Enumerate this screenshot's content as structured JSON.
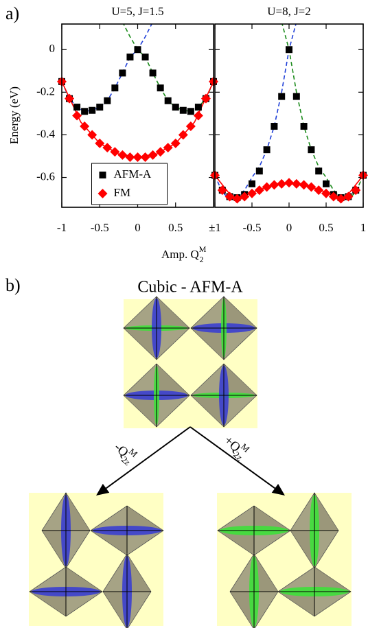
{
  "chart_data": [
    {
      "type": "scatter",
      "title": "U=5, J=1.5",
      "ylabel": "Energy (eV)",
      "xlabel": {
        "text": "Amp. Q",
        "sup": "M",
        "sub": "2"
      },
      "xlim": [
        -1,
        1
      ],
      "ylim": [
        -0.74,
        0.12
      ],
      "xticks": [
        -1,
        -0.5,
        0,
        0.5
      ],
      "yticks": [
        0,
        -0.2,
        -0.4,
        -0.6
      ],
      "ytick_labels": true,
      "legend": "lower center",
      "x": [
        -1,
        -0.9,
        -0.8,
        -0.7,
        -0.6,
        -0.5,
        -0.4,
        -0.3,
        -0.2,
        -0.1,
        0,
        0.1,
        0.2,
        0.3,
        0.4,
        0.5,
        0.6,
        0.7,
        0.8,
        0.9,
        1
      ],
      "series": [
        {
          "name": "AFM-A",
          "color": "#000000",
          "marker": "square",
          "values": [
            -0.15,
            -0.23,
            -0.27,
            -0.29,
            -0.285,
            -0.27,
            -0.24,
            -0.18,
            -0.11,
            -0.035,
            0,
            -0.035,
            -0.11,
            -0.18,
            -0.24,
            -0.27,
            -0.285,
            -0.29,
            -0.27,
            -0.23,
            -0.15
          ]
        },
        {
          "name": "FM",
          "color": "#ff0000",
          "marker": "diamond",
          "values": [
            -0.15,
            -0.23,
            -0.31,
            -0.36,
            -0.4,
            -0.44,
            -0.46,
            -0.48,
            -0.495,
            -0.505,
            -0.505,
            -0.505,
            -0.495,
            -0.48,
            -0.46,
            -0.44,
            -0.4,
            -0.36,
            -0.31,
            -0.23,
            -0.15
          ]
        }
      ],
      "fits": [
        {
          "color": "#1f3fd8",
          "style": "dashed",
          "x": [
            -1,
            -0.9,
            -0.8,
            -0.7,
            -0.6,
            -0.5,
            -0.4,
            -0.3,
            -0.2,
            -0.1,
            0,
            0.1,
            0.2
          ],
          "values": [
            -0.15,
            -0.23,
            -0.27,
            -0.29,
            -0.285,
            -0.27,
            -0.24,
            -0.18,
            -0.11,
            -0.035,
            0,
            0.06,
            0.13
          ]
        },
        {
          "color": "#1a8a1a",
          "style": "dashed",
          "x": [
            -0.2,
            -0.1,
            0,
            0.1,
            0.2,
            0.3,
            0.4,
            0.5,
            0.6,
            0.7,
            0.8,
            0.9,
            1
          ],
          "values": [
            0.13,
            0.06,
            0,
            -0.035,
            -0.11,
            -0.18,
            -0.24,
            -0.27,
            -0.285,
            -0.29,
            -0.27,
            -0.23,
            -0.15
          ]
        },
        {
          "color": "#ff0000",
          "style": "solid",
          "x": [
            -1,
            -0.75,
            -0.5,
            -0.25,
            0,
            0.25,
            0.5,
            0.75,
            1
          ],
          "values": [
            -0.15,
            -0.34,
            -0.44,
            -0.49,
            -0.505,
            -0.49,
            -0.44,
            -0.34,
            -0.15
          ]
        }
      ]
    },
    {
      "type": "scatter",
      "title": "U=8, J=2",
      "xlim": [
        -1,
        1
      ],
      "ylim": [
        -0.74,
        0.12
      ],
      "xticks": [
        {
          "value": -1,
          "label": "±1"
        },
        -0.5,
        0,
        0.5,
        1
      ],
      "yticks": [
        0,
        -0.2,
        -0.4,
        -0.6
      ],
      "ytick_labels": false,
      "x": [
        -1,
        -0.9,
        -0.8,
        -0.7,
        -0.6,
        -0.5,
        -0.4,
        -0.3,
        -0.2,
        -0.1,
        0,
        0.1,
        0.2,
        0.3,
        0.4,
        0.5,
        0.6,
        0.7,
        0.8,
        0.9,
        1
      ],
      "series": [
        {
          "color": "#000000",
          "marker": "square",
          "values": [
            -0.59,
            -0.66,
            -0.69,
            -0.695,
            -0.68,
            -0.63,
            -0.57,
            -0.47,
            -0.36,
            -0.22,
            0,
            -0.22,
            -0.36,
            -0.47,
            -0.57,
            -0.63,
            -0.68,
            -0.695,
            -0.69,
            -0.66,
            -0.59
          ]
        },
        {
          "color": "#ff0000",
          "marker": "diamond",
          "values": [
            -0.59,
            -0.66,
            -0.69,
            -0.7,
            -0.69,
            -0.675,
            -0.66,
            -0.645,
            -0.635,
            -0.63,
            -0.625,
            -0.63,
            -0.635,
            -0.645,
            -0.66,
            -0.675,
            -0.69,
            -0.7,
            -0.69,
            -0.66,
            -0.59
          ]
        }
      ],
      "fits": [
        {
          "color": "#1f3fd8",
          "style": "dashed",
          "x": [
            -1,
            -0.9,
            -0.8,
            -0.7,
            -0.6,
            -0.5,
            -0.4,
            -0.3,
            -0.2,
            -0.1,
            0,
            0.1
          ],
          "values": [
            -0.59,
            -0.67,
            -0.7,
            -0.69,
            -0.66,
            -0.6,
            -0.55,
            -0.47,
            -0.36,
            -0.2,
            0,
            0.13
          ]
        },
        {
          "color": "#1a8a1a",
          "style": "dashed",
          "x": [
            -0.1,
            0,
            0.1,
            0.2,
            0.3,
            0.4,
            0.5,
            0.6,
            0.7,
            0.8,
            0.9,
            1
          ],
          "values": [
            0.13,
            0,
            -0.2,
            -0.36,
            -0.47,
            -0.55,
            -0.6,
            -0.66,
            -0.69,
            -0.7,
            -0.67,
            -0.59
          ]
        },
        {
          "color": "#ff0000",
          "style": "solid",
          "x": [
            -1,
            -0.75,
            -0.5,
            -0.25,
            0,
            0.25,
            0.5,
            0.75,
            1
          ],
          "values": [
            -0.59,
            -0.7,
            -0.67,
            -0.64,
            -0.625,
            -0.64,
            -0.67,
            -0.7,
            -0.59
          ]
        }
      ]
    }
  ],
  "panel_labels": [
    "a)",
    "b)"
  ],
  "diagram": {
    "title": "Cubic - AFM-A",
    "arrows": [
      {
        "text": "-Q",
        "sup": "M",
        "sub": "2z"
      },
      {
        "text": "+Q",
        "sup": "M",
        "sub": "2z"
      }
    ]
  }
}
